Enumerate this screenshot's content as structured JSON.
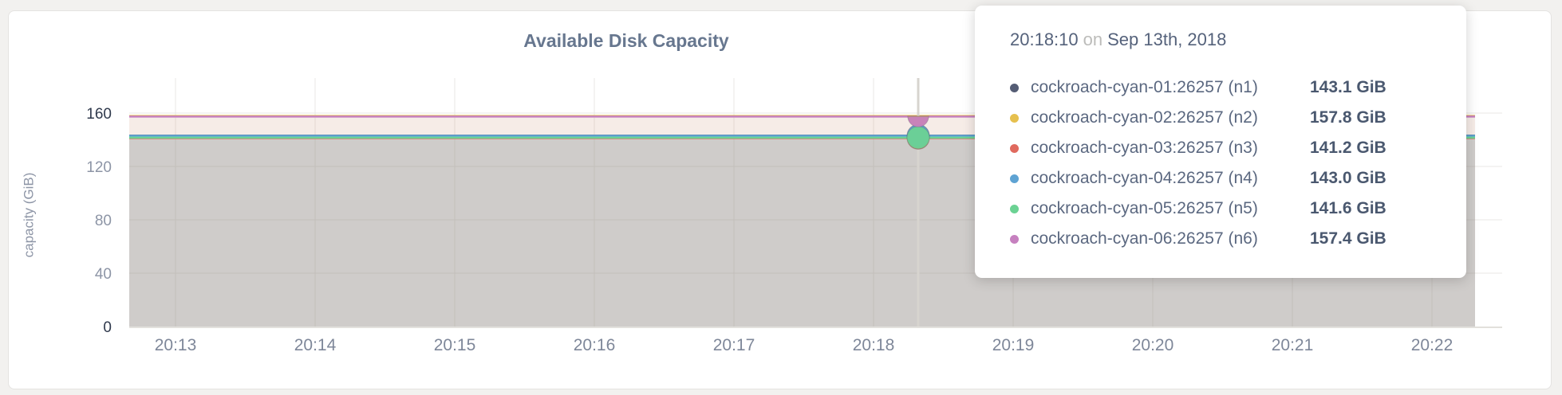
{
  "card": {
    "background": "#ffffff"
  },
  "chart_data": {
    "type": "area",
    "title": "Available Disk Capacity",
    "ylabel": "capacity (GiB)",
    "xlabel": "",
    "x_ticks": [
      "20:13",
      "20:14",
      "20:15",
      "20:16",
      "20:17",
      "20:18",
      "20:19",
      "20:20",
      "20:21",
      "20:22"
    ],
    "y_ticks": [
      0,
      40,
      80,
      120,
      160
    ],
    "ylim": [
      0,
      160
    ],
    "grid": true,
    "legend_position": "tooltip",
    "series": [
      {
        "name": "cockroach-cyan-01:26257 (n1)",
        "color": "#545c74",
        "value_gib": 143.1,
        "value_label": "143.1 GiB"
      },
      {
        "name": "cockroach-cyan-02:26257 (n2)",
        "color": "#e6c04e",
        "value_gib": 157.8,
        "value_label": "157.8 GiB"
      },
      {
        "name": "cockroach-cyan-03:26257 (n3)",
        "color": "#e06a5e",
        "value_gib": 141.2,
        "value_label": "141.2 GiB"
      },
      {
        "name": "cockroach-cyan-04:26257 (n4)",
        "color": "#5ea3d3",
        "value_gib": 143.0,
        "value_label": "143.0 GiB"
      },
      {
        "name": "cockroach-cyan-05:26257 (n5)",
        "color": "#6bd293",
        "value_gib": 141.6,
        "value_label": "141.6 GiB"
      },
      {
        "name": "cockroach-cyan-06:26257 (n6)",
        "color": "#c680bf",
        "value_gib": 157.4,
        "value_label": "157.4 GiB"
      }
    ],
    "hover": {
      "time_label": "20:18:10"
    }
  },
  "tooltip": {
    "time": "20:18:10",
    "separator": "on",
    "date": "Sep 13th, 2018"
  }
}
